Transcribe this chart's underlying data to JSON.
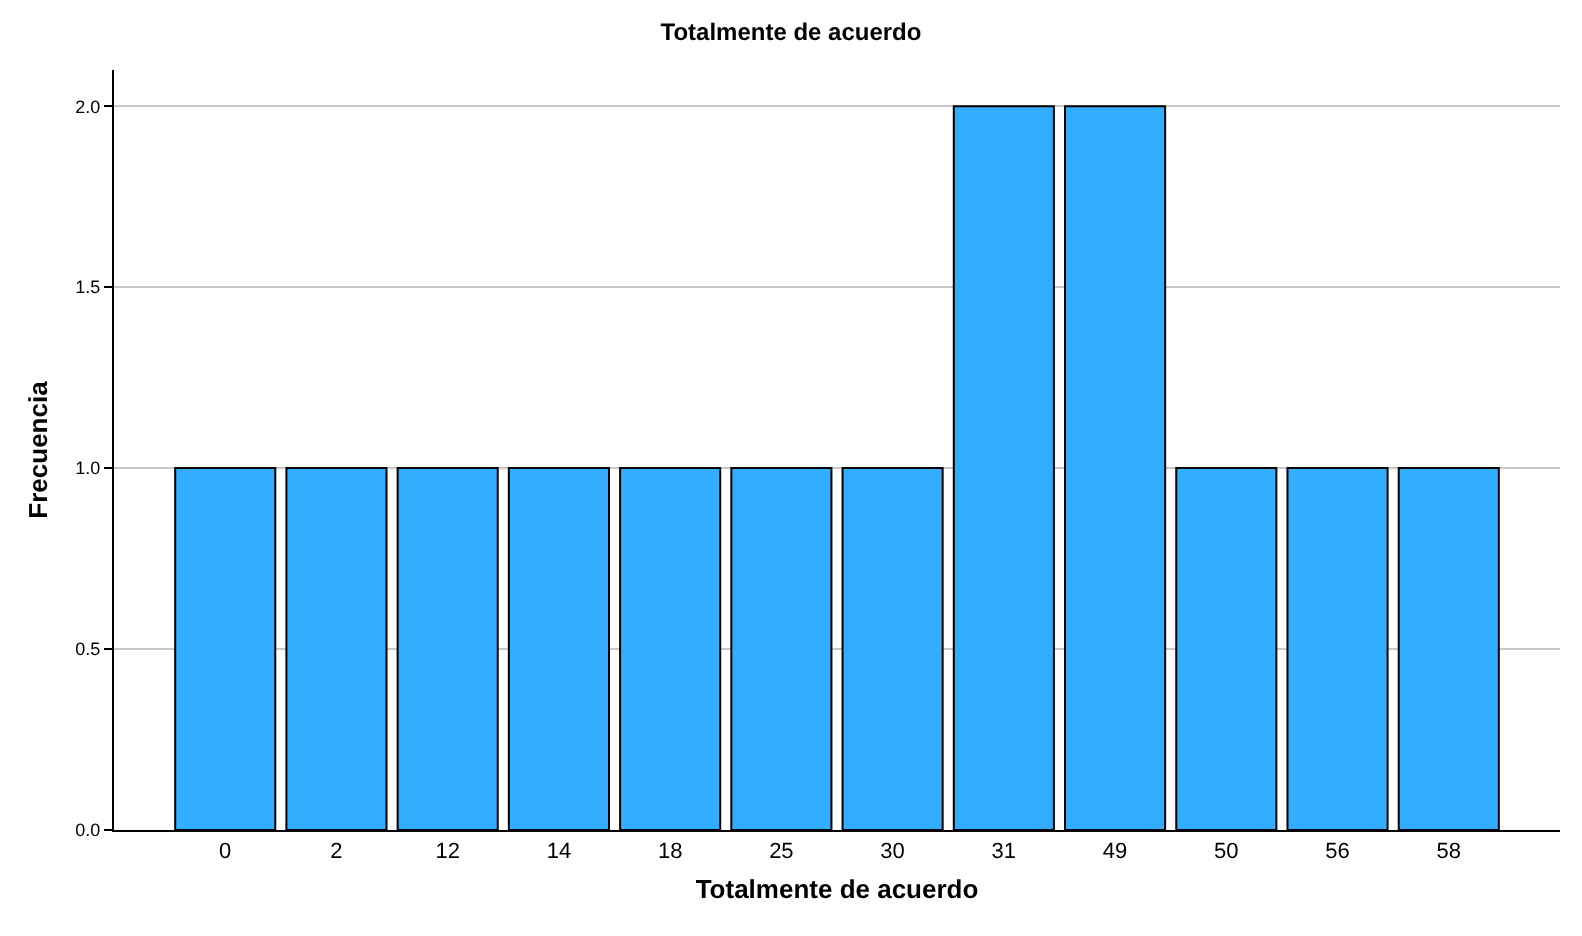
{
  "chart_data": {
    "type": "bar",
    "title": "Totalmente de acuerdo",
    "xlabel": "Totalmente de acuerdo",
    "ylabel": "Frecuencia",
    "categories": [
      "0",
      "2",
      "12",
      "14",
      "18",
      "25",
      "30",
      "31",
      "49",
      "50",
      "56",
      "58"
    ],
    "values": [
      1,
      1,
      1,
      1,
      1,
      1,
      1,
      2,
      2,
      1,
      1,
      1
    ],
    "color": "#33adff",
    "ylim": [
      0,
      2.1
    ],
    "yticks": [
      {
        "value": 0,
        "label": "0.0"
      },
      {
        "value": 0.5,
        "label": "0.5"
      },
      {
        "value": 1,
        "label": "1.0"
      },
      {
        "value": 1.5,
        "label": "1.5"
      },
      {
        "value": 2,
        "label": "2.0"
      }
    ],
    "grid": "y"
  }
}
